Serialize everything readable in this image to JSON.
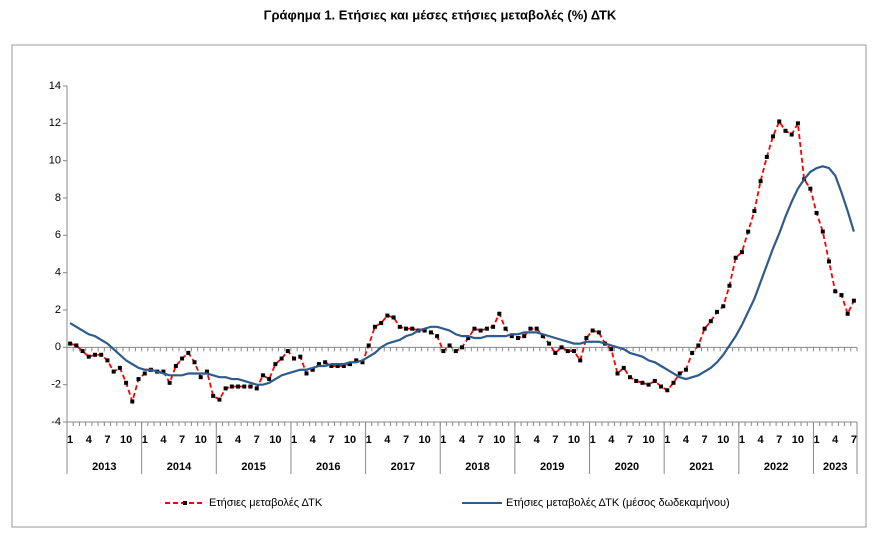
{
  "chart_data": {
    "type": "line",
    "title": "Γράφημα 1. Ετήσιες και μέσες ετήσιες μεταβολές (%) ΔΤΚ",
    "categories": [
      "1",
      null,
      null,
      "4",
      null,
      null,
      "7",
      null,
      null,
      "10",
      null,
      null,
      "1",
      null,
      null,
      "4",
      null,
      null,
      "7",
      null,
      null,
      "10",
      null,
      null,
      "1",
      null,
      null,
      "4",
      null,
      null,
      "7",
      null,
      null,
      "10",
      null,
      null,
      "1",
      null,
      null,
      "4",
      null,
      null,
      "7",
      null,
      null,
      "10",
      null,
      null,
      "1",
      null,
      null,
      "4",
      null,
      null,
      "7",
      null,
      null,
      "10",
      null,
      null,
      "1",
      null,
      null,
      "4",
      null,
      null,
      "7",
      null,
      null,
      "10",
      null,
      null,
      "1",
      null,
      null,
      "4",
      null,
      null,
      "7",
      null,
      null,
      "10",
      null,
      null,
      "1",
      null,
      null,
      "4",
      null,
      null,
      "7",
      null,
      null,
      "10",
      null,
      null,
      "1",
      null,
      null,
      "4",
      null,
      null,
      "7",
      null,
      null,
      "10",
      null,
      null,
      "1",
      null,
      null,
      "4",
      null,
      null,
      "7",
      null,
      null,
      "10",
      null,
      null,
      "1",
      null,
      null,
      "4",
      null,
      null,
      "7"
    ],
    "year_groups": [
      "2013",
      "2014",
      "2015",
      "2016",
      "2017",
      "2018",
      "2019",
      "2020",
      "2021",
      "2022",
      "2023"
    ],
    "series": [
      {
        "name": "Ετήσιες μεταβολές ΔΤΚ",
        "color": "#ff0000",
        "dashed": true,
        "marker_color": "#000000",
        "values": [
          0.2,
          0.1,
          -0.2,
          -0.5,
          -0.4,
          -0.4,
          -0.7,
          -1.3,
          -1.1,
          -1.9,
          -2.9,
          -1.7,
          -1.4,
          -1.2,
          -1.3,
          -1.3,
          -1.9,
          -1.0,
          -0.6,
          -0.3,
          -0.8,
          -1.6,
          -1.3,
          -2.6,
          -2.8,
          -2.2,
          -2.1,
          -2.1,
          -2.1,
          -2.1,
          -2.2,
          -1.5,
          -1.7,
          -0.9,
          -0.6,
          -0.2,
          -0.6,
          -0.5,
          -1.4,
          -1.2,
          -0.9,
          -0.8,
          -1.0,
          -1.0,
          -1.0,
          -0.9,
          -0.7,
          -0.8,
          0.1,
          1.1,
          1.3,
          1.7,
          1.6,
          1.1,
          1.0,
          1.0,
          0.9,
          0.9,
          0.8,
          0.6,
          -0.2,
          0.1,
          -0.2,
          0.0,
          0.5,
          1.0,
          0.9,
          1.0,
          1.1,
          1.8,
          1.0,
          0.6,
          0.5,
          0.6,
          1.0,
          1.0,
          0.6,
          0.2,
          -0.3,
          0.0,
          -0.2,
          -0.2,
          -0.7,
          0.5,
          0.9,
          0.8,
          0.2,
          -0.1,
          -1.4,
          -1.1,
          -1.6,
          -1.8,
          -1.9,
          -2.0,
          -1.8,
          -2.1,
          -2.3,
          -1.9,
          -1.4,
          -1.2,
          -0.3,
          0.1,
          1.0,
          1.4,
          1.9,
          2.2,
          3.3,
          4.8,
          5.1,
          6.2,
          7.3,
          8.9,
          10.2,
          11.3,
          12.1,
          11.6,
          11.4,
          12.0,
          9.0,
          8.5,
          7.2,
          6.2,
          4.6,
          3.0,
          2.8,
          1.8,
          2.5
        ]
      },
      {
        "name": "Ετήσιες μεταβολές ΔΤΚ (μέσος δωδεκαμήνου)",
        "color": "#2e5b8c",
        "dashed": false,
        "values": [
          1.3,
          1.1,
          0.9,
          0.7,
          0.6,
          0.4,
          0.2,
          -0.1,
          -0.4,
          -0.7,
          -0.9,
          -1.1,
          -1.2,
          -1.2,
          -1.3,
          -1.4,
          -1.5,
          -1.5,
          -1.5,
          -1.4,
          -1.4,
          -1.4,
          -1.4,
          -1.5,
          -1.6,
          -1.6,
          -1.7,
          -1.7,
          -1.8,
          -1.9,
          -2.0,
          -2.0,
          -1.9,
          -1.7,
          -1.5,
          -1.4,
          -1.3,
          -1.2,
          -1.2,
          -1.1,
          -1.0,
          -1.0,
          -0.9,
          -0.9,
          -0.9,
          -0.8,
          -0.8,
          -0.7,
          -0.5,
          -0.3,
          0.0,
          0.2,
          0.3,
          0.4,
          0.6,
          0.7,
          0.9,
          1.0,
          1.1,
          1.1,
          1.0,
          0.9,
          0.7,
          0.6,
          0.6,
          0.5,
          0.5,
          0.6,
          0.6,
          0.6,
          0.6,
          0.7,
          0.7,
          0.8,
          0.8,
          0.8,
          0.7,
          0.6,
          0.5,
          0.4,
          0.3,
          0.2,
          0.2,
          0.3,
          0.3,
          0.3,
          0.2,
          0.1,
          0.0,
          -0.1,
          -0.3,
          -0.4,
          -0.5,
          -0.7,
          -0.8,
          -1.0,
          -1.2,
          -1.4,
          -1.6,
          -1.7,
          -1.6,
          -1.5,
          -1.3,
          -1.1,
          -0.8,
          -0.4,
          0.1,
          0.6,
          1.2,
          1.9,
          2.6,
          3.5,
          4.4,
          5.3,
          6.1,
          7.0,
          7.8,
          8.5,
          9.0,
          9.4,
          9.6,
          9.7,
          9.6,
          9.2,
          8.3,
          7.3,
          6.2
        ]
      }
    ],
    "ylim": [
      -4,
      14
    ],
    "yticks": [
      -4,
      -2,
      0,
      2,
      4,
      6,
      8,
      10,
      12,
      14
    ],
    "grid": false,
    "legend": "bottom"
  }
}
